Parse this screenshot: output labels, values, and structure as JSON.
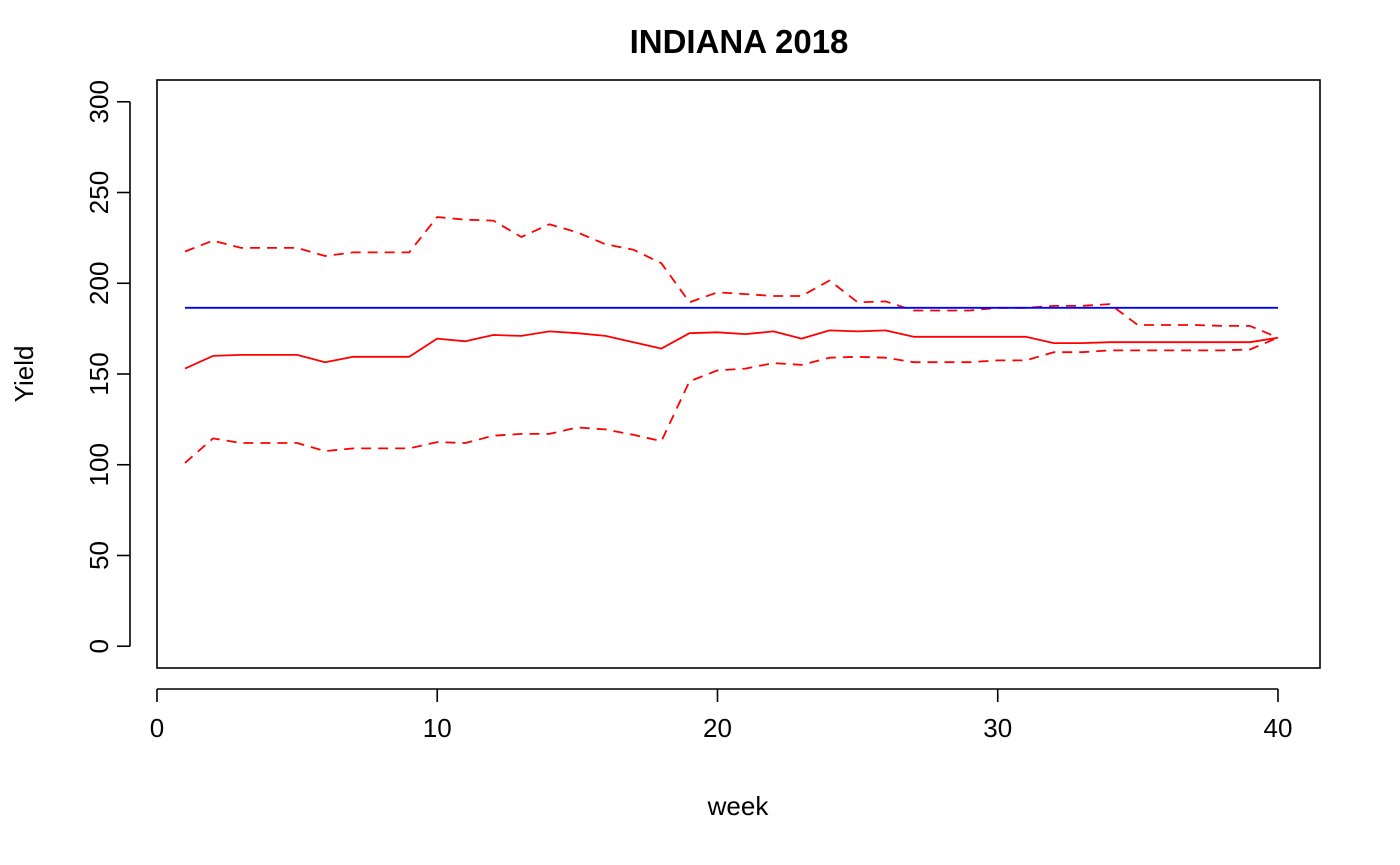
{
  "chart_data": {
    "type": "line",
    "title": "INDIANA 2018",
    "xlabel": "week",
    "ylabel": "Yield",
    "xlim": [
      0,
      41.5
    ],
    "ylim": [
      -12,
      312
    ],
    "x_ticks": [
      0,
      10,
      20,
      30,
      40
    ],
    "y_ticks": [
      0,
      50,
      100,
      150,
      200,
      250,
      300
    ],
    "grid": false,
    "legend": "none",
    "x": [
      1,
      2,
      3,
      4,
      5,
      6,
      7,
      8,
      9,
      10,
      11,
      12,
      13,
      14,
      15,
      16,
      17,
      18,
      19,
      20,
      21,
      22,
      23,
      24,
      25,
      26,
      27,
      28,
      29,
      30,
      31,
      32,
      33,
      34,
      35,
      36,
      37,
      38,
      39,
      40
    ],
    "series": [
      {
        "style": "solid",
        "color": "#ff0000",
        "values": [
          153,
          160,
          160.5,
          160.5,
          160.5,
          156.5,
          159.5,
          159.5,
          159.5,
          169.5,
          168,
          171.5,
          171,
          173.5,
          172.5,
          171,
          167.5,
          164,
          172.5,
          173,
          172,
          173.5,
          169.5,
          174,
          173.5,
          174,
          170.5,
          170.5,
          170.5,
          170.5,
          170.5,
          167,
          167,
          167.5,
          167.5,
          167.5,
          167.5,
          167.5,
          167.5,
          170
        ]
      },
      {
        "style": "dashed",
        "color": "#ff0000",
        "values": [
          217.5,
          223.5,
          219.5,
          219.5,
          219.5,
          215,
          217,
          217,
          217,
          236.5,
          235,
          234.5,
          225.5,
          232.5,
          228,
          221.5,
          218.5,
          211,
          189.5,
          195,
          194,
          193,
          193,
          201.5,
          189.5,
          190,
          185,
          185,
          185,
          186.5,
          186.5,
          187.5,
          187.5,
          188.5,
          177,
          177,
          177,
          176.5,
          176.5,
          170
        ]
      },
      {
        "style": "dashed",
        "color": "#ff0000",
        "values": [
          101,
          114.5,
          112,
          112,
          112,
          107.5,
          109,
          109,
          109,
          112.5,
          112,
          116,
          117,
          117,
          120.5,
          119.5,
          116.5,
          113,
          146,
          152,
          153,
          156,
          155,
          159,
          159.5,
          159,
          156.5,
          156.5,
          156.5,
          157.5,
          157.5,
          162,
          162,
          163,
          163,
          163,
          163,
          163,
          163.5,
          170
        ]
      },
      {
        "style": "solid",
        "color": "#0000ff",
        "values": [
          186.5,
          186.5,
          186.5,
          186.5,
          186.5,
          186.5,
          186.5,
          186.5,
          186.5,
          186.5,
          186.5,
          186.5,
          186.5,
          186.5,
          186.5,
          186.5,
          186.5,
          186.5,
          186.5,
          186.5,
          186.5,
          186.5,
          186.5,
          186.5,
          186.5,
          186.5,
          186.5,
          186.5,
          186.5,
          186.5,
          186.5,
          186.5,
          186.5,
          186.5,
          186.5,
          186.5,
          186.5,
          186.5,
          186.5,
          186.5
        ]
      }
    ]
  }
}
